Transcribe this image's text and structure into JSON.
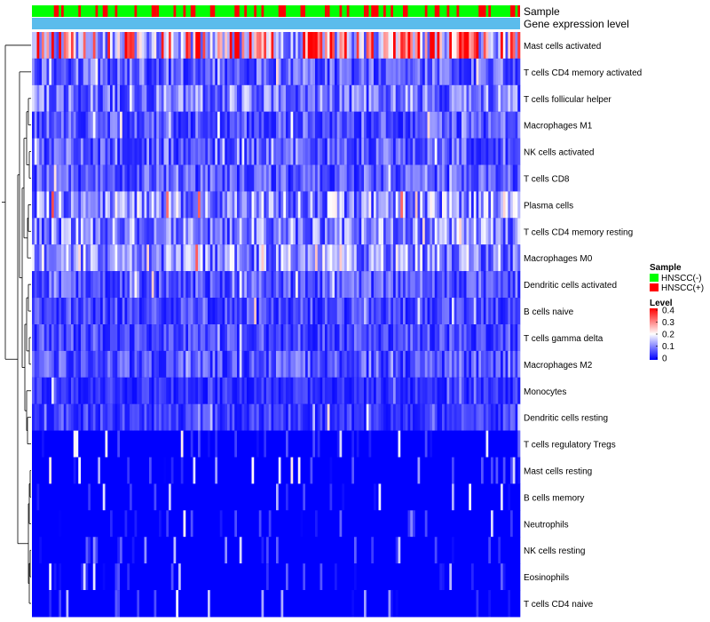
{
  "chart_data": {
    "type": "heatmap",
    "title": "",
    "annotation_tracks": [
      "Sample",
      "Gene expression level"
    ],
    "rows": [
      "Mast cells activated",
      "T cells CD4 memory activated",
      "T cells follicular helper",
      "Macrophages M1",
      "NK cells activated",
      "T cells CD8",
      "Plasma cells",
      "T cells CD4 memory resting",
      "Macrophages M0",
      "Dendritic cells activated",
      "B cells naive",
      "T cells gamma delta",
      "Macrophages M2",
      "Monocytes",
      "Dendritic cells resting",
      "T cells regulatory  Tregs",
      "Mast cells resting",
      "B cells memory",
      "Neutrophils",
      "NK cells resting",
      "Eosinophils",
      "T cells CD4 naive"
    ],
    "row_mean_levels": [
      0.26,
      0.08,
      0.1,
      0.07,
      0.08,
      0.07,
      0.12,
      0.11,
      0.12,
      0.07,
      0.06,
      0.06,
      0.07,
      0.04,
      0.05,
      0.02,
      0.01,
      0.01,
      0.01,
      0.01,
      0.01,
      0.02
    ],
    "n_samples": 200,
    "legend": {
      "sample_title": "Sample",
      "sample_groups": [
        {
          "label": "HNSCC(-)",
          "color": "#00ff00"
        },
        {
          "label": "HNSCC(+)",
          "color": "#ff0000"
        }
      ],
      "level_title": "Level",
      "level_ticks": [
        "0.4",
        "0.3",
        "0.2",
        "0.1",
        "0"
      ],
      "level_range": [
        0,
        0.4
      ],
      "colors": {
        "low": "#0000ff",
        "mid": "#ffffff",
        "high": "#ff0000"
      }
    },
    "track_colors": {
      "gene_expression_level": "#5bbcec"
    }
  }
}
